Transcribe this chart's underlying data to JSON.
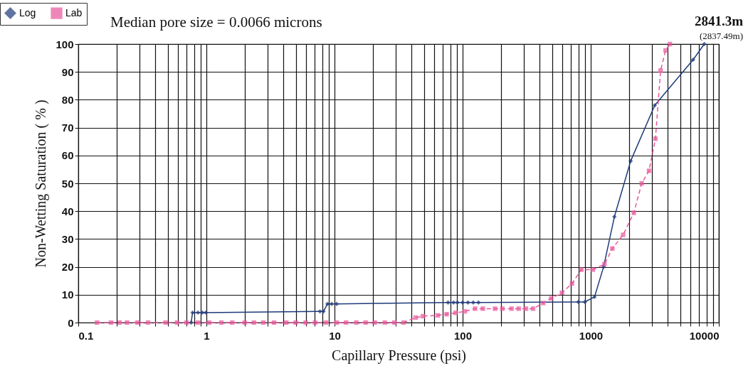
{
  "chart_data": {
    "type": "line",
    "title": "Median pore size = 0.0066 microns",
    "xlabel": "Capillary Pressure (psi)",
    "ylabel": "Non-Wetting Saturation ( % )",
    "annotations": [
      "2841.3m",
      "(2837.49m)"
    ],
    "log": "x",
    "grid": true,
    "legend": "top left",
    "xlim": [
      0.1,
      10000
    ],
    "ylim": [
      0,
      100
    ],
    "xticks": [
      0.1,
      {
        "value": 0.2,
        "label": null
      },
      {
        "value": 0.3,
        "label": null
      },
      {
        "value": 0.4,
        "label": null
      },
      {
        "value": 0.5,
        "label": null
      },
      {
        "value": 0.6,
        "label": null
      },
      {
        "value": 0.7,
        "label": null
      },
      {
        "value": 0.8,
        "label": null
      },
      {
        "value": 0.9,
        "label": null
      },
      1,
      {
        "value": 2,
        "label": null
      },
      {
        "value": 3,
        "label": null
      },
      {
        "value": 4,
        "label": null
      },
      {
        "value": 5,
        "label": null
      },
      {
        "value": 6,
        "label": null
      },
      {
        "value": 7,
        "label": null
      },
      {
        "value": 8,
        "label": null
      },
      {
        "value": 9,
        "label": null
      },
      10,
      {
        "value": 20,
        "label": null
      },
      {
        "value": 30,
        "label": null
      },
      {
        "value": 40,
        "label": null
      },
      {
        "value": 50,
        "label": null
      },
      {
        "value": 60,
        "label": null
      },
      {
        "value": 70,
        "label": null
      },
      {
        "value": 80,
        "label": null
      },
      {
        "value": 90,
        "label": null
      },
      100,
      {
        "value": 200,
        "label": null
      },
      {
        "value": 300,
        "label": null
      },
      {
        "value": 400,
        "label": null
      },
      {
        "value": 500,
        "label": null
      },
      {
        "value": 600,
        "label": null
      },
      {
        "value": 700,
        "label": null
      },
      {
        "value": 800,
        "label": null
      },
      {
        "value": 900,
        "label": null
      },
      1000,
      {
        "value": 2000,
        "label": null
      },
      {
        "value": 3000,
        "label": null
      },
      {
        "value": 4000,
        "label": null
      },
      {
        "value": 5000,
        "label": null
      },
      {
        "value": 6000,
        "label": null
      },
      {
        "value": 7000,
        "label": null
      },
      {
        "value": 8000,
        "label": null
      },
      {
        "value": 9000,
        "label": null
      },
      10000
    ],
    "yticks": [
      0,
      10,
      20,
      30,
      40,
      50,
      60,
      70,
      80,
      90,
      100
    ],
    "series": [
      {
        "name": "Log",
        "color": "#1f3a7a",
        "marker": "diamond",
        "line_style": "solid",
        "x": [
          0.76,
          0.78,
          0.86,
          0.93,
          0.99,
          7.7,
          8.2,
          8.8,
          9.5,
          10.4,
          77,
          85,
          91,
          100,
          110,
          121,
          133,
          800,
          900,
          1070,
          1260,
          1530,
          2050,
          3160,
          6300,
          7700
        ],
        "values": [
          0,
          3.6,
          3.6,
          3.6,
          3.6,
          4,
          4,
          6.7,
          6.7,
          6.7,
          7.2,
          7.2,
          7.2,
          7.2,
          7.2,
          7.2,
          7.2,
          7.4,
          7.4,
          9.2,
          20,
          38,
          58,
          78,
          94.4,
          100
        ]
      },
      {
        "name": "Lab",
        "color": "#e8559a",
        "marker": "square",
        "line_style": "dashed",
        "x": [
          0.14,
          0.18,
          0.21,
          0.24,
          0.29,
          0.35,
          0.48,
          0.59,
          0.7,
          0.86,
          1.05,
          1.31,
          1.59,
          1.99,
          2.35,
          2.78,
          3.37,
          4.2,
          4.98,
          5.96,
          7.05,
          8.57,
          10.4,
          12.3,
          14.8,
          17.5,
          20.6,
          24.7,
          29.3,
          34.6,
          43,
          49,
          64,
          75,
          88,
          104,
          125,
          144,
          179,
          204,
          241,
          274,
          312,
          355,
          426,
          491,
          596,
          714,
          845,
          1040,
          1280,
          1475,
          1790,
          2170,
          2500,
          2850,
          3200,
          3510,
          3840,
          4150
        ],
        "values": [
          0,
          0,
          0,
          0,
          0,
          0,
          0,
          0,
          0,
          0,
          0,
          0,
          0,
          0,
          0,
          0,
          0,
          0,
          0,
          0,
          0,
          0,
          0,
          0,
          0,
          0,
          0,
          0,
          0,
          0,
          1.8,
          2.3,
          2.6,
          3,
          3.5,
          4,
          5,
          5,
          5,
          5,
          5,
          5,
          5,
          5,
          7,
          8.7,
          10.7,
          14,
          19,
          19,
          21,
          26.6,
          31.5,
          39.4,
          50,
          54.5,
          66,
          90.5,
          97.7,
          100
        ]
      }
    ]
  }
}
